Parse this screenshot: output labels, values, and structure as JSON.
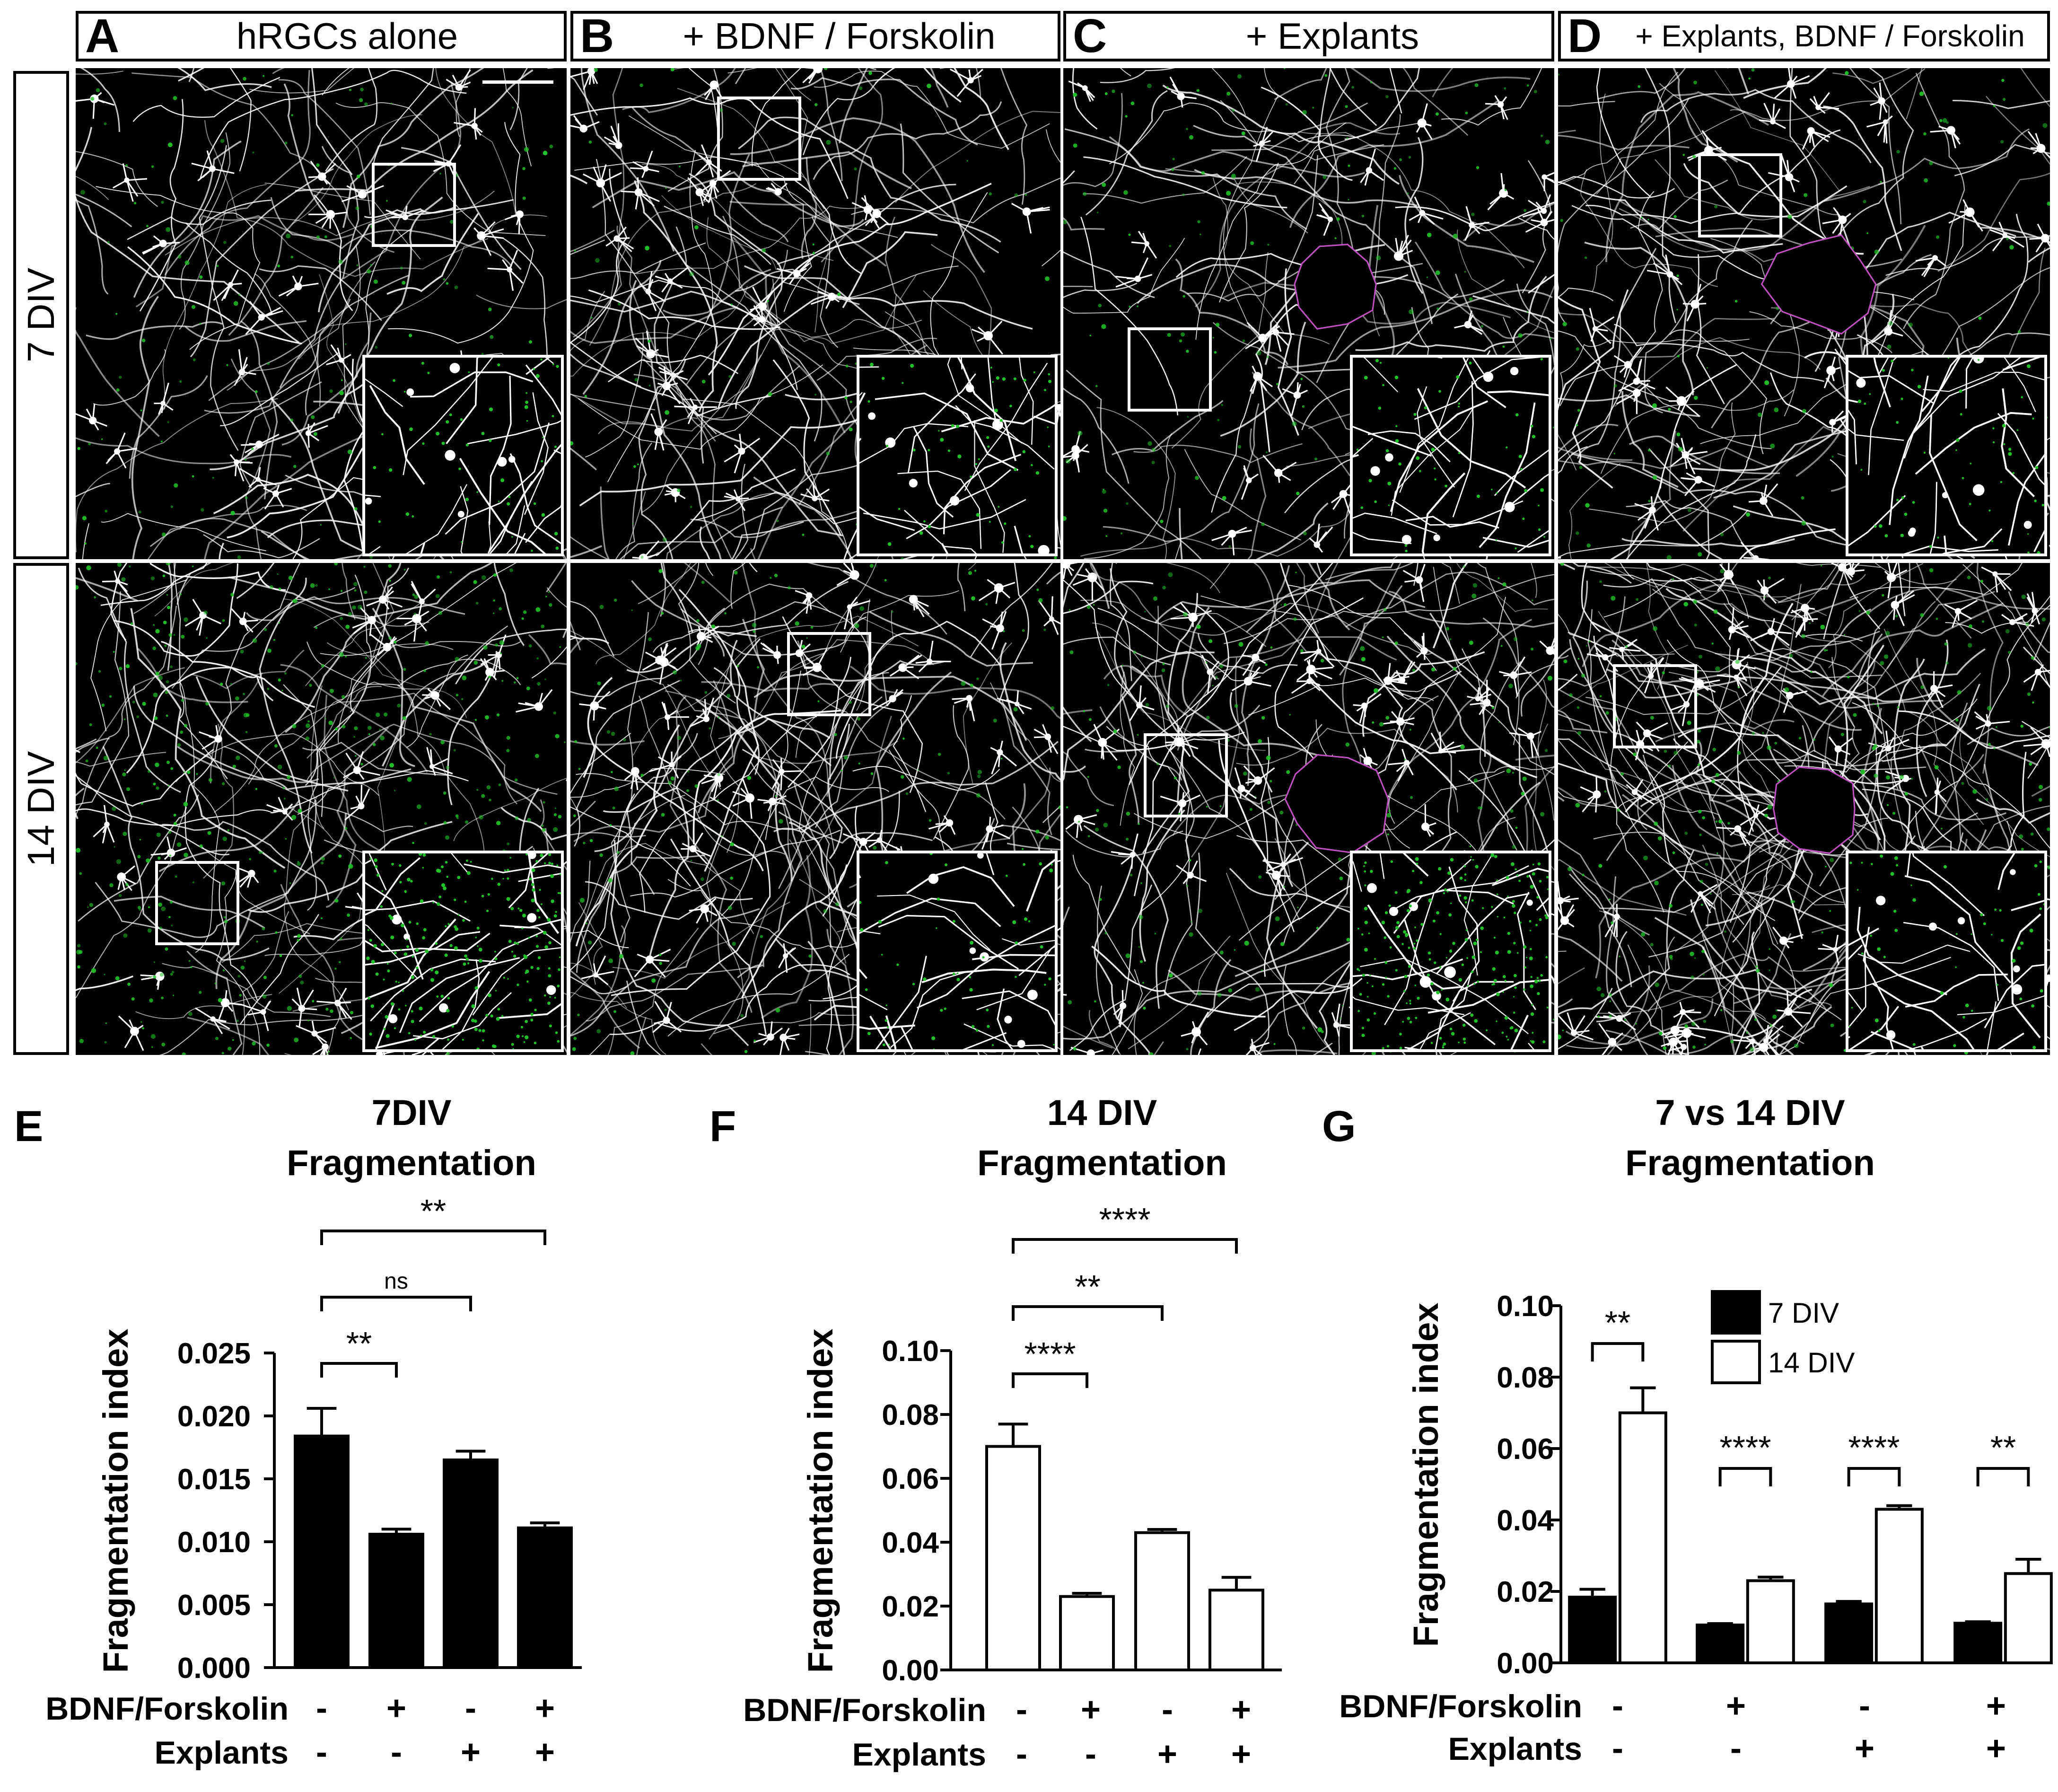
{
  "headers": [
    {
      "letter": "A",
      "title": "hRGCs alone"
    },
    {
      "letter": "B",
      "title": "+ BDNF / Forskolin"
    },
    {
      "letter": "C",
      "title": "+ Explants"
    },
    {
      "letter": "D",
      "title": "+ Explants, BDNF / Forskolin"
    }
  ],
  "rows": [
    "7 DIV",
    "14 DIV"
  ],
  "colors": {
    "neurite": "#ffffff",
    "marker": "#22c02a",
    "explant_outline": "#c04fbf",
    "bar_fill": "#000000"
  },
  "condition_rows": {
    "bdnf_label": "BDNF/Forskolin",
    "explants_label": "Explants",
    "bdnf": [
      "-",
      "+",
      "-",
      "+"
    ],
    "explants": [
      "-",
      "-",
      "+",
      "+"
    ]
  },
  "chart_data": [
    {
      "panel": "E",
      "type": "bar",
      "title": [
        "7DIV",
        "Fragmentation"
      ],
      "ylabel": "Fragmentation index",
      "ylim": [
        0,
        0.025
      ],
      "yticks": [
        "0.000",
        "0.005",
        "0.010",
        "0.015",
        "0.020",
        "0.025"
      ],
      "categories": [
        "hRGCs alone",
        "+ BDNF/Forskolin",
        "+ Explants",
        "+ Explants, BDNF/Forskolin"
      ],
      "series": [
        {
          "name": "7 DIV",
          "fill": "#000000",
          "values": [
            0.0184,
            0.0106,
            0.0165,
            0.0111
          ],
          "errors": [
            0.0022,
            0.0004,
            0.0007,
            0.0004
          ]
        }
      ],
      "annotations": [
        {
          "from": 0,
          "to": 1,
          "label": "**"
        },
        {
          "from": 0,
          "to": 2,
          "label": "ns"
        },
        {
          "from": 0,
          "to": 3,
          "label": "**"
        }
      ]
    },
    {
      "panel": "F",
      "type": "bar",
      "title": [
        "14 DIV",
        "Fragmentation"
      ],
      "ylabel": "Fragmentation index",
      "ylim": [
        0,
        0.1
      ],
      "yticks": [
        "0.00",
        "0.02",
        "0.04",
        "0.06",
        "0.08",
        "0.10"
      ],
      "categories": [
        "hRGCs alone",
        "+ BDNF/Forskolin",
        "+ Explants",
        "+ Explants, BDNF/Forskolin"
      ],
      "series": [
        {
          "name": "14 DIV",
          "fill": "#ffffff",
          "values": [
            0.07,
            0.023,
            0.043,
            0.025
          ],
          "errors": [
            0.007,
            0.001,
            0.001,
            0.004
          ]
        }
      ],
      "annotations": [
        {
          "from": 0,
          "to": 1,
          "label": "****"
        },
        {
          "from": 0,
          "to": 2,
          "label": "**"
        },
        {
          "from": 0,
          "to": 3,
          "label": "****"
        }
      ]
    },
    {
      "panel": "G",
      "type": "bar",
      "title": [
        "7 vs 14 DIV",
        "Fragmentation"
      ],
      "ylabel": "Fragmentation index",
      "ylim": [
        0,
        0.1
      ],
      "yticks": [
        "0.00",
        "0.02",
        "0.04",
        "0.06",
        "0.08",
        "0.10"
      ],
      "categories": [
        "hRGCs alone",
        "+ BDNF/Forskolin",
        "+ Explants",
        "+ Explants, BDNF/Forskolin"
      ],
      "legend": [
        "7 DIV",
        "14 DIV"
      ],
      "series": [
        {
          "name": "7 DIV",
          "fill": "#000000",
          "values": [
            0.0184,
            0.0106,
            0.0165,
            0.0111
          ],
          "errors": [
            0.0022,
            0.0004,
            0.0007,
            0.0004
          ]
        },
        {
          "name": "14 DIV",
          "fill": "#ffffff",
          "values": [
            0.07,
            0.023,
            0.043,
            0.025
          ],
          "errors": [
            0.007,
            0.001,
            0.001,
            0.004
          ]
        }
      ],
      "annotations": [
        {
          "group": 0,
          "label": "**"
        },
        {
          "group": 1,
          "label": "****"
        },
        {
          "group": 2,
          "label": "****"
        },
        {
          "group": 3,
          "label": "**"
        }
      ]
    }
  ]
}
